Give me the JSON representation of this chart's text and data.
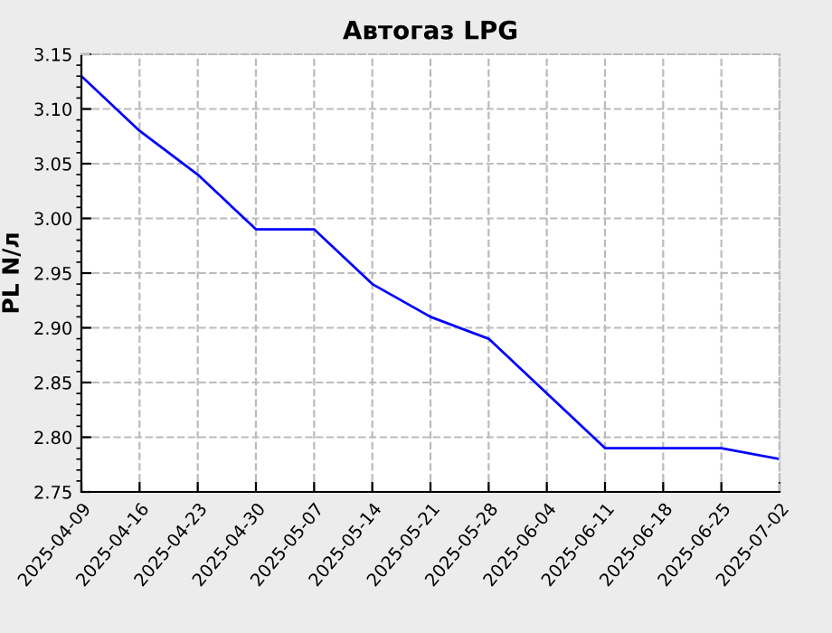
{
  "chart_data": {
    "type": "line",
    "title": "Автогаз LPG",
    "ylabel": "PL N/л",
    "x": [
      "2025-04-09",
      "2025-04-16",
      "2025-04-23",
      "2025-04-30",
      "2025-05-07",
      "2025-05-14",
      "2025-05-21",
      "2025-05-28",
      "2025-06-04",
      "2025-06-11",
      "2025-06-18",
      "2025-06-25",
      "2025-07-02"
    ],
    "series": [
      {
        "color": "#0000ff",
        "values": [
          3.13,
          3.08,
          3.04,
          2.99,
          2.99,
          2.94,
          2.91,
          2.89,
          2.84,
          2.79,
          2.79,
          2.79,
          2.78
        ]
      }
    ],
    "xlim": [
      "2025-04-09",
      "2025-07-02"
    ],
    "xticks": [
      "2025-04-09",
      "2025-04-16",
      "2025-04-23",
      "2025-04-30",
      "2025-05-07",
      "2025-05-14",
      "2025-05-21",
      "2025-05-28",
      "2025-06-04",
      "2025-06-11",
      "2025-06-18",
      "2025-06-25",
      "2025-07-02"
    ],
    "ylim": [
      2.75,
      3.15
    ],
    "yticks": [
      {
        "value": 2.75,
        "label": "2.75"
      },
      {
        "value": 2.8,
        "label": "2.80"
      },
      {
        "value": 2.85,
        "label": "2.85"
      },
      {
        "value": 2.9,
        "label": "2.90"
      },
      {
        "value": 2.95,
        "label": "2.95"
      },
      {
        "value": 3.0,
        "label": "3.00"
      },
      {
        "value": 3.05,
        "label": "3.05"
      },
      {
        "value": 3.1,
        "label": "3.10"
      },
      {
        "value": 3.15,
        "label": "3.15"
      }
    ],
    "grid": true,
    "marker": "none",
    "line_style": "solid"
  }
}
